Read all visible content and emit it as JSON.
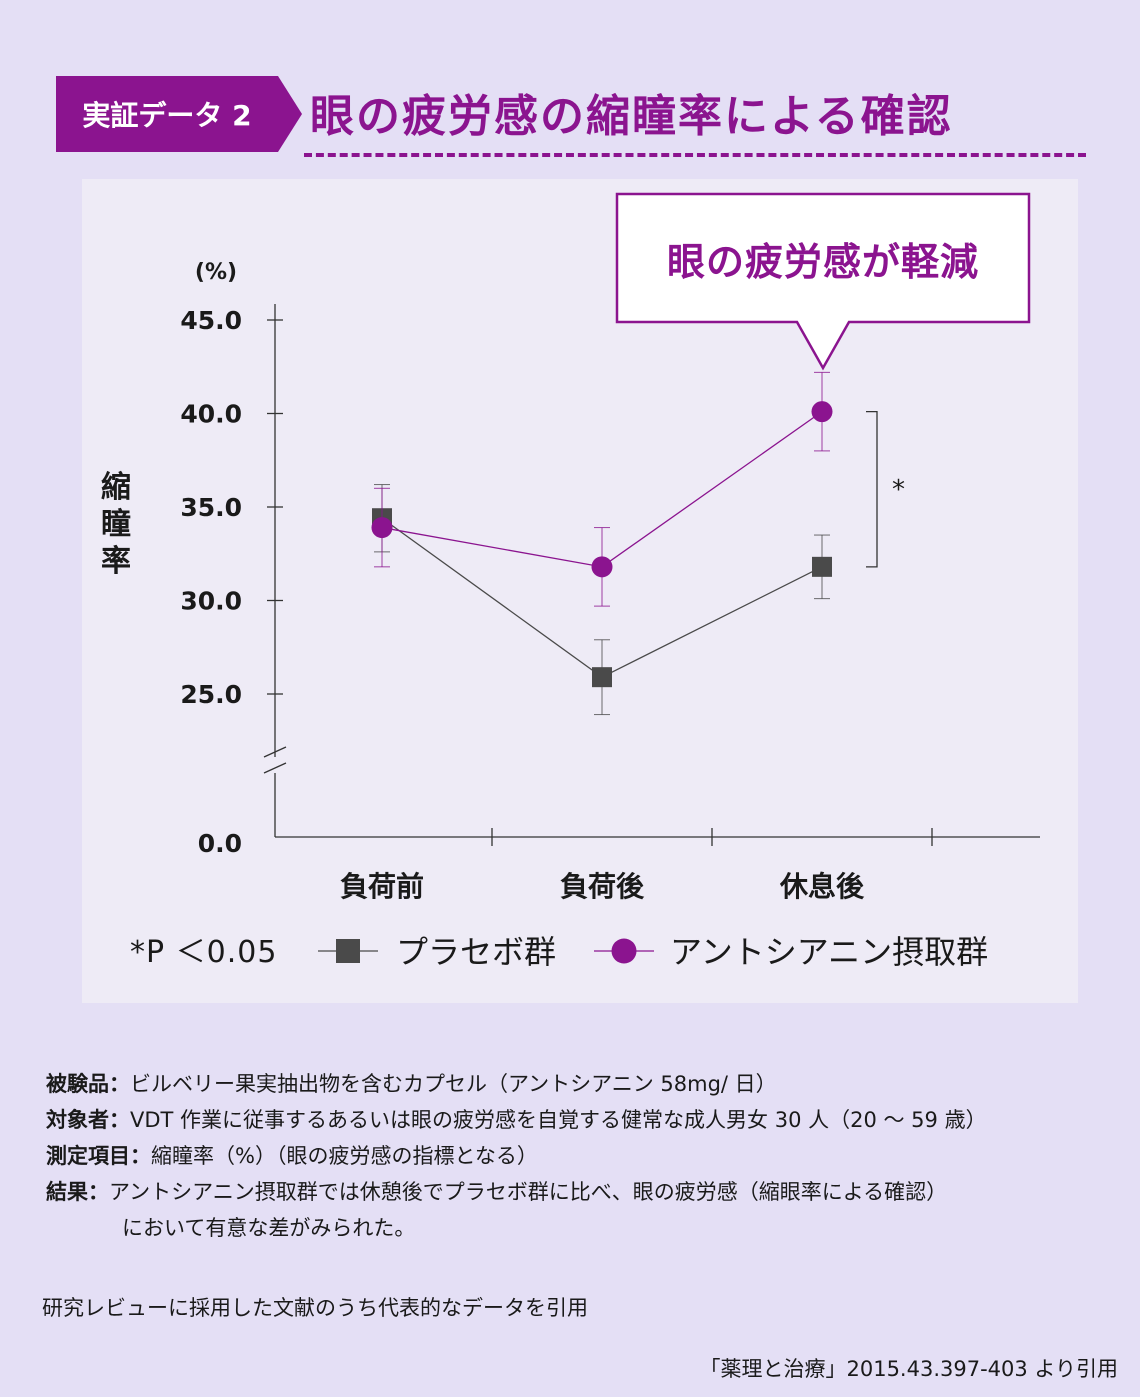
{
  "header": {
    "tag": "実証データ 2",
    "title": "眼の疲労感の縮瞳率による確認"
  },
  "callout": "眼の疲労感が軽減",
  "significance_marker": "*",
  "legend": {
    "significance": "*P ＜0.05",
    "placebo": "プラセボ群",
    "anthocyanin": "アントシアニン摂取群"
  },
  "chart_data": {
    "type": "line",
    "ylabel": "縮瞳率",
    "yunit": "(%)",
    "yticks": [
      "45.0",
      "40.0",
      "35.0",
      "30.0",
      "25.0",
      "0.0"
    ],
    "ylim": [
      0,
      45
    ],
    "axis_break": true,
    "categories": [
      "負荷前",
      "負荷後",
      "休息後"
    ],
    "series": [
      {
        "name": "プラセボ群",
        "marker": "square",
        "color": "#4a4a4a",
        "values": [
          34.4,
          25.9,
          31.8
        ],
        "err": [
          1.8,
          2.0,
          1.7
        ]
      },
      {
        "name": "アントシアニン摂取群",
        "marker": "circle",
        "color": "#8b148f",
        "values": [
          33.9,
          31.8,
          40.1
        ],
        "err": [
          2.1,
          2.1,
          2.1
        ]
      }
    ]
  },
  "notes": [
    {
      "key": "被験品：",
      "text": "ビルベリー果実抽出物を含むカプセル（アントシアニン 58mg/ 日）"
    },
    {
      "key": "対象者：",
      "text": "VDT 作業に従事するあるいは眼の疲労感を自覚する健常な成人男女 30 人（20 ～ 59 歳）"
    },
    {
      "key": "測定項目：",
      "text": "縮瞳率（%）（眼の疲労感の指標となる）"
    },
    {
      "key": "結果：",
      "text": "アントシアニン摂取群では休憩後でプラセボ群に比べ、眼の疲労感（縮眼率による確認）"
    }
  ],
  "notes_continuation": "において有意な差がみられた。",
  "study_note": "研究レビューに採用した文献のうち代表的なデータを引用",
  "source": "「薬理と治療」2015.43.397-403 より引用",
  "colors": {
    "accent": "#8b148f",
    "placebo": "#4a4a4a",
    "background": "#e4dff5",
    "panel": "#eeebf6"
  }
}
